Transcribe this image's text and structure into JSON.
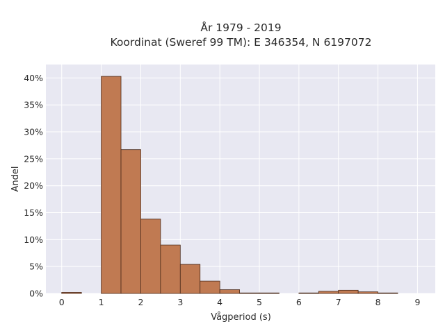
{
  "chart_data": {
    "type": "bar",
    "title_line1": "År 1979 - 2019",
    "title_line2": "Koordinat (Sweref 99 TM): E 346354, N 6197072",
    "xlabel": "Vågperiod (s)",
    "ylabel": "Andel",
    "xlim": [
      -0.4,
      9.45
    ],
    "ylim": [
      0,
      42.5
    ],
    "x_ticks": [
      "0",
      "1",
      "2",
      "3",
      "4",
      "5",
      "6",
      "7",
      "8",
      "9"
    ],
    "y_ticks": [
      "0%",
      "5%",
      "10%",
      "15%",
      "20%",
      "25%",
      "30%",
      "35%",
      "40%"
    ],
    "bin_width": 0.5,
    "bins": [
      {
        "start": 0.0,
        "value": 0.2
      },
      {
        "start": 0.5,
        "value": 0.0
      },
      {
        "start": 1.0,
        "value": 40.3
      },
      {
        "start": 1.5,
        "value": 26.7
      },
      {
        "start": 2.0,
        "value": 13.8
      },
      {
        "start": 2.5,
        "value": 9.0
      },
      {
        "start": 3.0,
        "value": 5.4
      },
      {
        "start": 3.5,
        "value": 2.3
      },
      {
        "start": 4.0,
        "value": 0.7
      },
      {
        "start": 4.5,
        "value": 0.1
      },
      {
        "start": 5.0,
        "value": 0.1
      },
      {
        "start": 5.5,
        "value": 0.0
      },
      {
        "start": 6.0,
        "value": 0.1
      },
      {
        "start": 6.5,
        "value": 0.4
      },
      {
        "start": 7.0,
        "value": 0.6
      },
      {
        "start": 7.5,
        "value": 0.3
      },
      {
        "start": 8.0,
        "value": 0.1
      }
    ],
    "bar_color": "#c07a52",
    "bar_edge_color": "#4a2a1a",
    "plot_background": "#e8e8f2",
    "grid": true
  }
}
